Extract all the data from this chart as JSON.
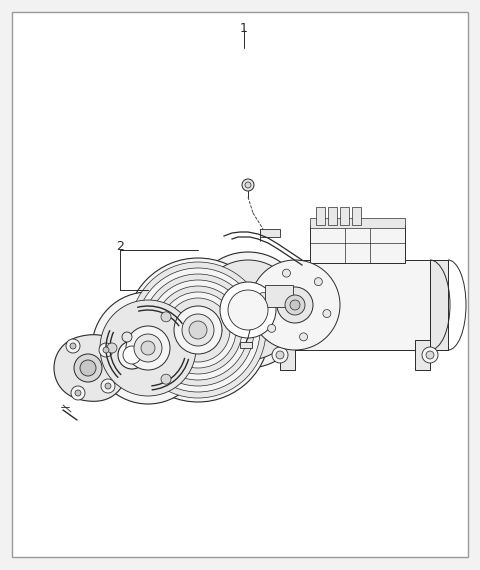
{
  "bg_color": "#f2f2f2",
  "white": "#ffffff",
  "border_color": "#999999",
  "lc": "#2a2a2a",
  "lc_light": "#555555",
  "fill_light": "#f5f5f5",
  "fill_mid": "#e8e8e8",
  "fill_dark": "#d8d8d8",
  "fill_darker": "#c8c8c8",
  "label1": "1",
  "label2": "2",
  "fig_w": 4.8,
  "fig_h": 5.7,
  "dpi": 100
}
